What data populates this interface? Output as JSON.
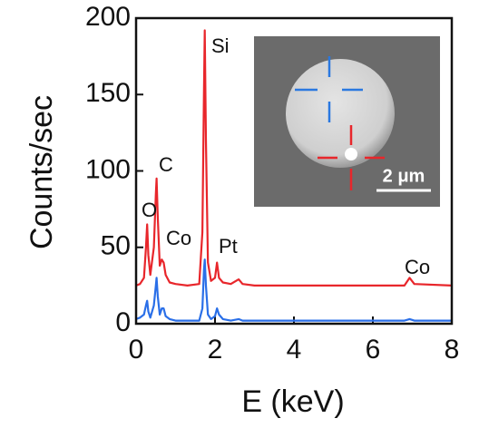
{
  "chart_data": {
    "type": "line",
    "xlabel": "E (keV)",
    "ylabel": "Counts/sec",
    "x": [
      0,
      0.1,
      0.2,
      0.25,
      0.28,
      0.31,
      0.36,
      0.45,
      0.5,
      0.52,
      0.55,
      0.6,
      0.65,
      0.7,
      0.75,
      0.85,
      1.0,
      1.3,
      1.6,
      1.68,
      1.72,
      1.74,
      1.77,
      1.82,
      1.9,
      2.0,
      2.05,
      2.1,
      2.2,
      2.4,
      2.6,
      2.7,
      3.0,
      4.0,
      5.0,
      6.0,
      6.8,
      6.93,
      7.05,
      8.0
    ],
    "series": [
      {
        "color": "#e8262b",
        "values": [
          25,
          26,
          30,
          50,
          65,
          45,
          32,
          50,
          85,
          95,
          70,
          38,
          42,
          40,
          32,
          27,
          26,
          25,
          26,
          60,
          150,
          192,
          120,
          40,
          28,
          30,
          40,
          30,
          27,
          26,
          29,
          26,
          25,
          25,
          25,
          25,
          25,
          30,
          26,
          25
        ]
      },
      {
        "color": "#2a6fe8",
        "values": [
          3,
          4,
          6,
          12,
          15,
          8,
          4,
          12,
          25,
          30,
          18,
          6,
          10,
          10,
          5,
          3,
          2,
          2,
          2,
          10,
          35,
          42,
          25,
          6,
          3,
          5,
          10,
          6,
          3,
          2,
          3,
          2,
          2,
          2,
          2,
          2,
          2,
          3,
          2,
          2
        ]
      }
    ],
    "xlim": [
      0,
      8
    ],
    "xticks": [
      0,
      2,
      4,
      6,
      8
    ],
    "ylim": [
      0,
      200
    ],
    "yticks": [
      0,
      50,
      100,
      150,
      200
    ],
    "annotations": [
      "O",
      "C",
      "Co",
      "Si",
      "Pt",
      "Co"
    ],
    "scale_bar_label": "2 μm"
  }
}
